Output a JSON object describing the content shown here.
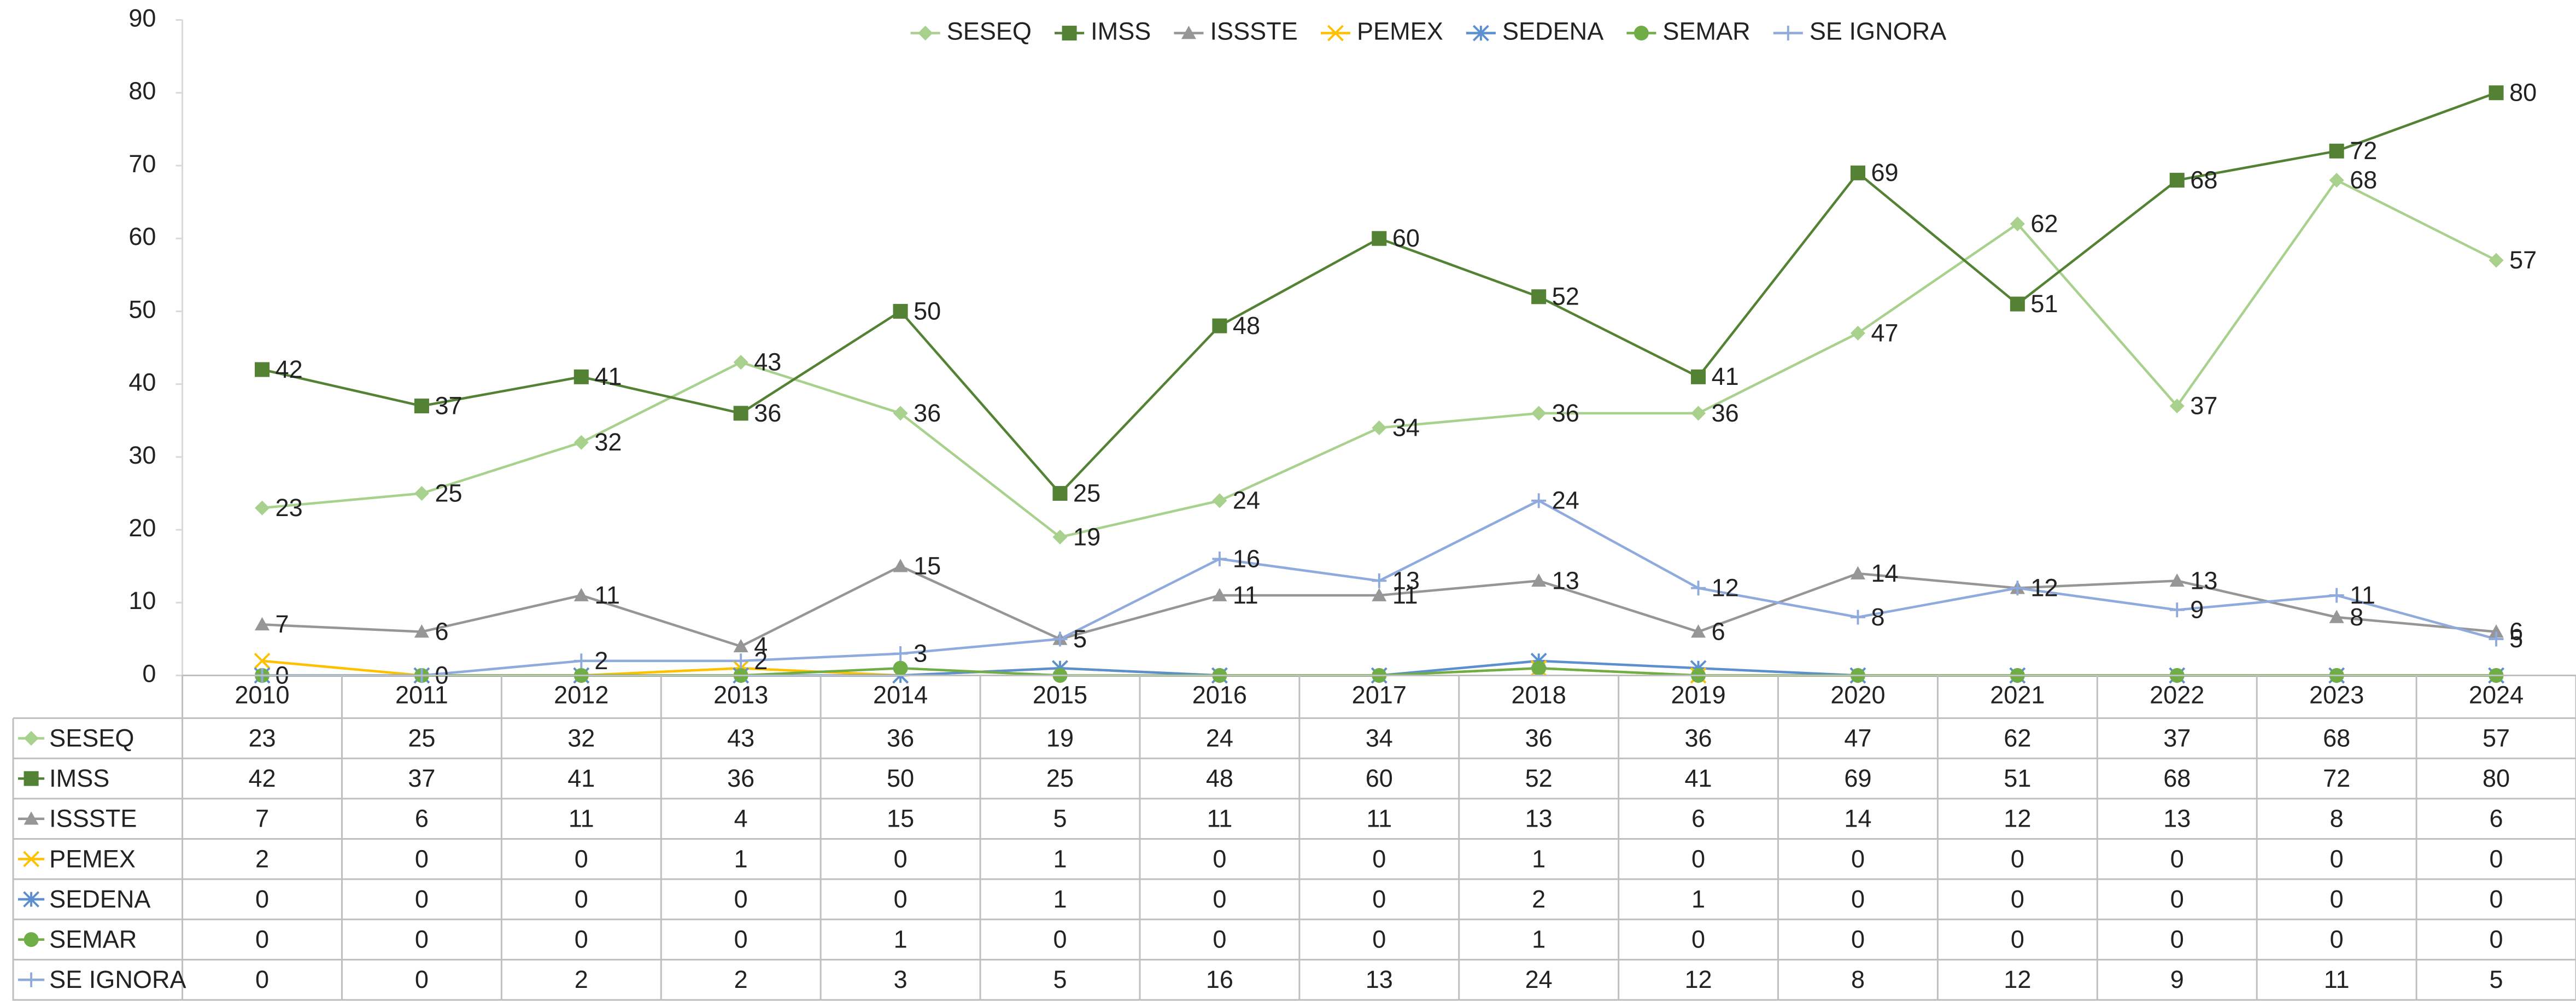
{
  "chart_data": {
    "type": "line",
    "categories": [
      "2010",
      "2011",
      "2012",
      "2013",
      "2014",
      "2015",
      "2016",
      "2017",
      "2018",
      "2019",
      "2020",
      "2021",
      "2022",
      "2023",
      "2024"
    ],
    "series": [
      {
        "name": "SESEQ",
        "color": "#a9d18e",
        "marker": "diamond",
        "data_labels": true,
        "values": [
          23,
          25,
          32,
          43,
          36,
          19,
          24,
          34,
          36,
          36,
          47,
          62,
          37,
          68,
          57
        ]
      },
      {
        "name": "IMSS",
        "color": "#548235",
        "marker": "square",
        "data_labels": true,
        "values": [
          42,
          37,
          41,
          36,
          50,
          25,
          48,
          60,
          52,
          41,
          69,
          51,
          68,
          72,
          80
        ]
      },
      {
        "name": "ISSSTE",
        "color": "#969696",
        "marker": "triangle",
        "data_labels": true,
        "values": [
          7,
          6,
          11,
          4,
          15,
          5,
          11,
          11,
          13,
          6,
          14,
          12,
          13,
          8,
          6
        ]
      },
      {
        "name": "PEMEX",
        "color": "#ffc000",
        "marker": "x",
        "data_labels": false,
        "values": [
          2,
          0,
          0,
          1,
          0,
          1,
          0,
          0,
          1,
          0,
          0,
          0,
          0,
          0,
          0
        ]
      },
      {
        "name": "SEDENA",
        "color": "#5b8fd0",
        "marker": "star",
        "data_labels": false,
        "values": [
          0,
          0,
          0,
          0,
          0,
          1,
          0,
          0,
          2,
          1,
          0,
          0,
          0,
          0,
          0
        ]
      },
      {
        "name": "SEMAR",
        "color": "#70ad47",
        "marker": "circle",
        "data_labels": false,
        "values": [
          0,
          0,
          0,
          0,
          1,
          0,
          0,
          0,
          1,
          0,
          0,
          0,
          0,
          0,
          0
        ]
      },
      {
        "name": "SE IGNORA",
        "color": "#8faadc",
        "marker": "plus",
        "data_labels": true,
        "values": [
          0,
          0,
          2,
          2,
          3,
          5,
          16,
          13,
          24,
          12,
          8,
          12,
          9,
          11,
          5
        ]
      }
    ],
    "ylim": [
      0,
      90
    ],
    "yticks": [
      0,
      10,
      20,
      30,
      40,
      50,
      60,
      70,
      80,
      90
    ],
    "legend": "top",
    "grid": false,
    "data_table": true
  }
}
